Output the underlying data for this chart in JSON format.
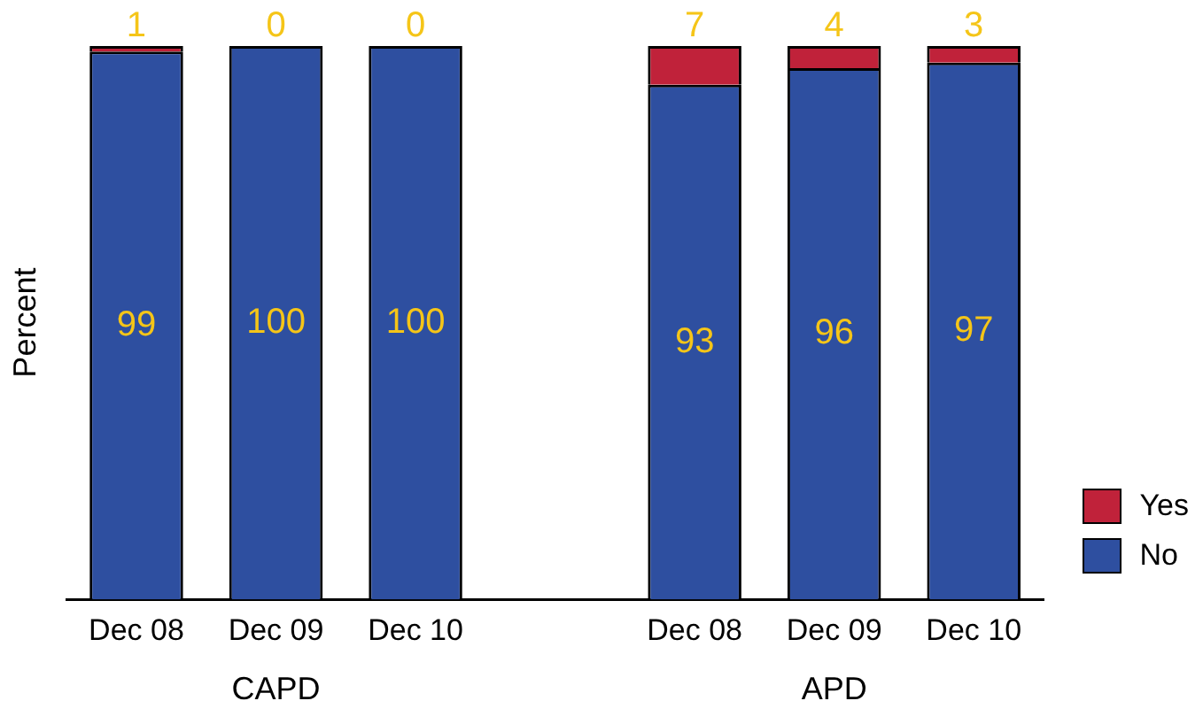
{
  "chart_data": {
    "type": "bar",
    "stacked": true,
    "ylabel": "Percent",
    "categories": [
      "Dec 08",
      "Dec 09",
      "Dec 10",
      null,
      "Dec 08",
      "Dec 09",
      "Dec 10"
    ],
    "series": [
      {
        "name": "No",
        "color": "#2e4fa0",
        "values": [
          99,
          100,
          100,
          null,
          93,
          96,
          97
        ]
      },
      {
        "name": "Yes",
        "color": "#c0223a",
        "values": [
          1,
          0,
          0,
          null,
          7,
          4,
          3
        ]
      }
    ],
    "ylim": [
      0,
      100
    ],
    "tick_labels": "x",
    "grid": false,
    "legend": "bottom right",
    "data_labels": true,
    "annotations": [
      "CAPD",
      "APD"
    ]
  }
}
